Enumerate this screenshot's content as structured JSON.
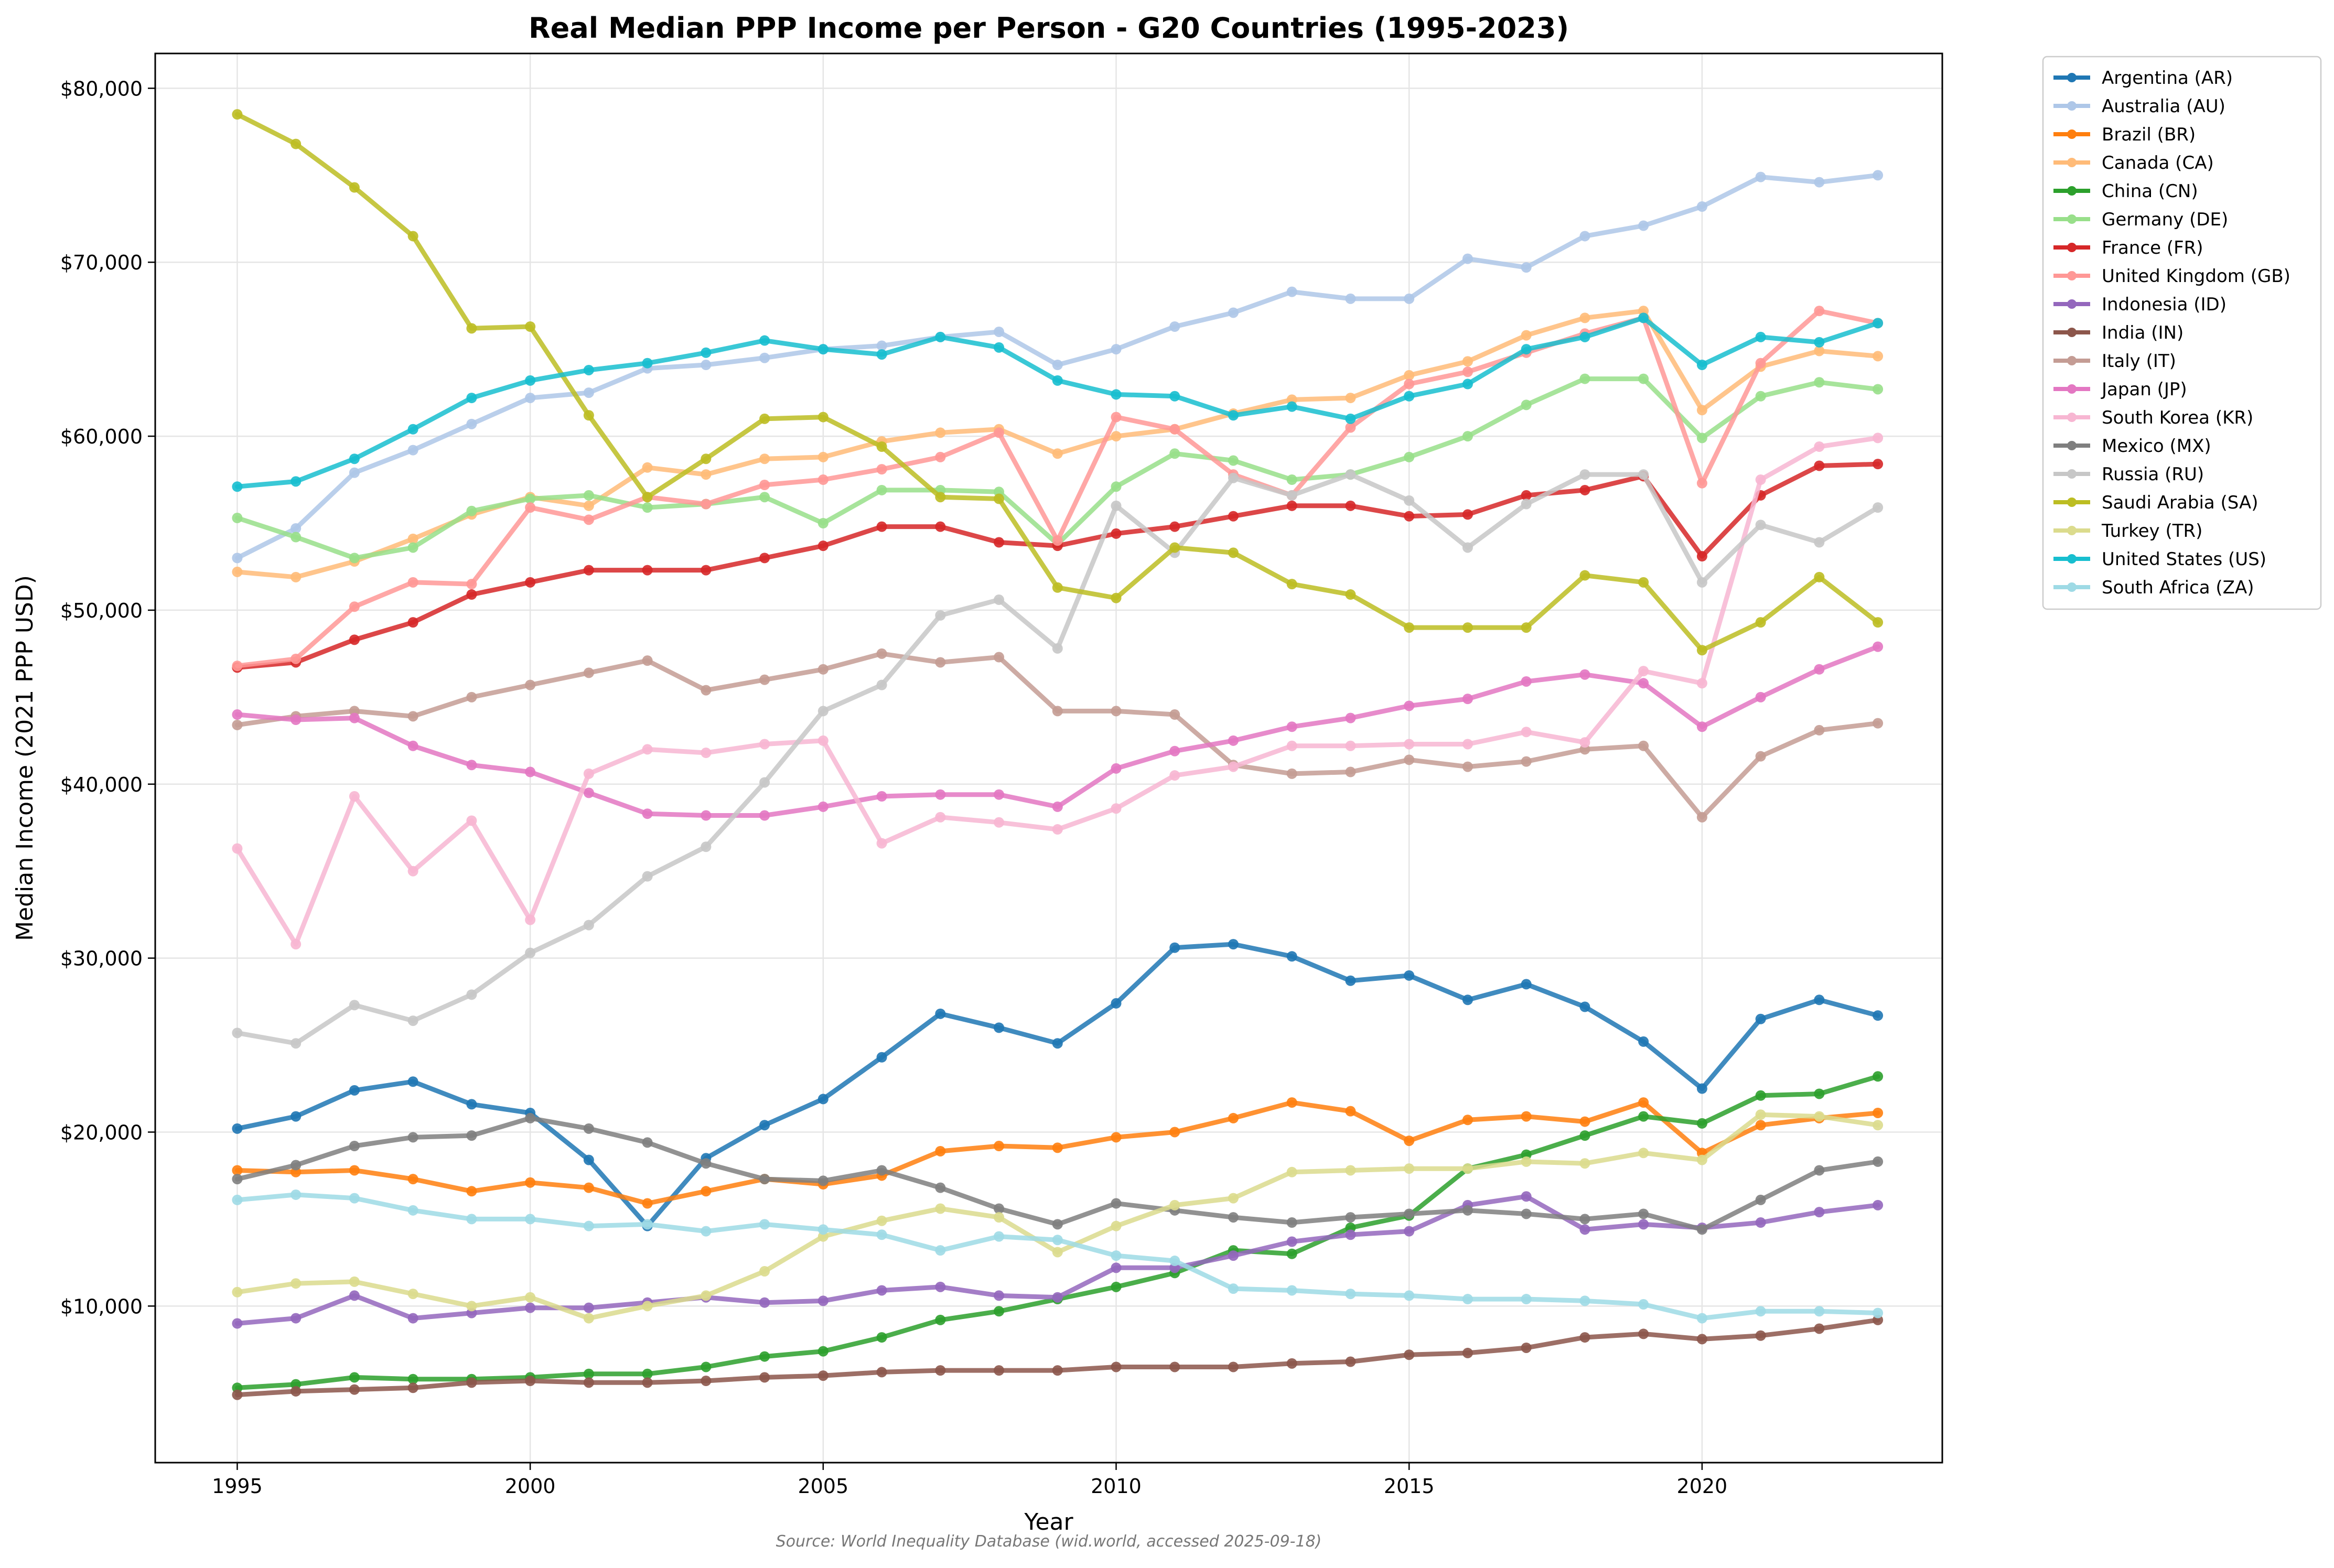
{
  "chart_data": {
    "type": "line",
    "title": "Real Median PPP Income per Person - G20 Countries (1995-2023)",
    "xlabel": "Year",
    "ylabel": "Median Income (2021 PPP USD)",
    "source_note": "Source: World Inequality Database (wid.world, accessed 2025-09-18)",
    "xlim": [
      1993.6,
      2024.1
    ],
    "ylim": [
      1000,
      82000
    ],
    "x_ticks": [
      1995,
      2000,
      2005,
      2010,
      2015,
      2020
    ],
    "x_tick_labels": [
      "1995",
      "2000",
      "2005",
      "2010",
      "2015",
      "2020"
    ],
    "y_ticks": [
      10000,
      20000,
      30000,
      40000,
      50000,
      60000,
      70000,
      80000
    ],
    "y_tick_labels": [
      "$10,000",
      "$20,000",
      "$30,000",
      "$40,000",
      "$50,000",
      "$60,000",
      "$70,000",
      "$80,000"
    ],
    "grid": true,
    "legend_position": "outside-right-top",
    "x": [
      1995,
      1996,
      1997,
      1998,
      1999,
      2000,
      2001,
      2002,
      2003,
      2004,
      2005,
      2006,
      2007,
      2008,
      2009,
      2010,
      2011,
      2012,
      2013,
      2014,
      2015,
      2016,
      2017,
      2018,
      2019,
      2020,
      2021,
      2022,
      2023
    ],
    "series": [
      {
        "name": "Argentina (AR)",
        "color": "#1f77b4",
        "values": [
          20200,
          20900,
          22400,
          22900,
          21600,
          21100,
          18400,
          14600,
          18500,
          20400,
          21900,
          24300,
          26800,
          26000,
          25100,
          27400,
          30600,
          30800,
          30100,
          28700,
          29000,
          27600,
          28500,
          27200,
          25200,
          22500,
          26500,
          27600,
          26700
        ]
      },
      {
        "name": "Australia (AU)",
        "color": "#aec7e8",
        "values": [
          53000,
          54700,
          57900,
          59200,
          60700,
          62200,
          62500,
          63900,
          64100,
          64500,
          65000,
          65200,
          65700,
          66000,
          64100,
          65000,
          66300,
          67100,
          68300,
          67900,
          67900,
          70200,
          69700,
          71500,
          72100,
          73200,
          74900,
          74600,
          75000
        ]
      },
      {
        "name": "Brazil (BR)",
        "color": "#ff7f0e",
        "values": [
          17800,
          17700,
          17800,
          17300,
          16600,
          17100,
          16800,
          15900,
          16600,
          17300,
          17000,
          17500,
          18900,
          19200,
          19100,
          19700,
          20000,
          20800,
          21700,
          21200,
          19500,
          20700,
          20900,
          20600,
          21700,
          18800,
          20400,
          20800,
          21100
        ]
      },
      {
        "name": "Canada (CA)",
        "color": "#ffbb78",
        "values": [
          52200,
          51900,
          52800,
          54100,
          55500,
          56500,
          56000,
          58200,
          57800,
          58700,
          58800,
          59700,
          60200,
          60400,
          59000,
          60000,
          60400,
          61300,
          62100,
          62200,
          63500,
          64300,
          65800,
          66800,
          67200,
          61500,
          64000,
          64900,
          64600
        ]
      },
      {
        "name": "China (CN)",
        "color": "#2ca02c",
        "values": [
          5300,
          5500,
          5900,
          5800,
          5800,
          5900,
          6100,
          6100,
          6500,
          7100,
          7400,
          8200,
          9200,
          9700,
          10400,
          11100,
          11900,
          13200,
          13000,
          14500,
          15200,
          17900,
          18700,
          19800,
          20900,
          20500,
          22100,
          22200,
          23200
        ]
      },
      {
        "name": "Germany (DE)",
        "color": "#98df8a",
        "values": [
          55300,
          54200,
          53000,
          53600,
          55700,
          56400,
          56600,
          55900,
          56100,
          56500,
          55000,
          56900,
          56900,
          56800,
          53800,
          57100,
          59000,
          58600,
          57500,
          57800,
          58800,
          60000,
          61800,
          63300,
          63300,
          59900,
          62300,
          63100,
          62700
        ]
      },
      {
        "name": "France (FR)",
        "color": "#d62728",
        "values": [
          46700,
          47000,
          48300,
          49300,
          50900,
          51600,
          52300,
          52300,
          52300,
          53000,
          53700,
          54800,
          54800,
          53900,
          53700,
          54400,
          54800,
          55400,
          56000,
          56000,
          55400,
          55500,
          56600,
          56900,
          57700,
          53100,
          56600,
          58300,
          58400
        ]
      },
      {
        "name": "United Kingdom (GB)",
        "color": "#ff9896",
        "values": [
          46800,
          47200,
          50200,
          51600,
          51500,
          55900,
          55200,
          56500,
          56100,
          57200,
          57500,
          58100,
          58800,
          60200,
          54000,
          61100,
          60400,
          57800,
          56600,
          60500,
          63000,
          63700,
          64800,
          65900,
          66800,
          57300,
          64200,
          67200,
          66500
        ]
      },
      {
        "name": "Indonesia (ID)",
        "color": "#9467bd",
        "values": [
          9000,
          9300,
          10600,
          9300,
          9600,
          9900,
          9900,
          10200,
          10500,
          10200,
          10300,
          10900,
          11100,
          10600,
          10500,
          12200,
          12200,
          12900,
          13700,
          14100,
          14300,
          15800,
          16300,
          14400,
          14700,
          14500,
          14800,
          15400,
          15800
        ]
      },
      {
        "name": "India (IN)",
        "color": "#8c564b",
        "values": [
          4900,
          5100,
          5200,
          5300,
          5600,
          5700,
          5600,
          5600,
          5700,
          5900,
          6000,
          6200,
          6300,
          6300,
          6300,
          6500,
          6500,
          6500,
          6700,
          6800,
          7200,
          7300,
          7600,
          8200,
          8400,
          8100,
          8300,
          8700,
          9200
        ]
      },
      {
        "name": "Italy (IT)",
        "color": "#c49c94",
        "values": [
          43400,
          43900,
          44200,
          43900,
          45000,
          45700,
          46400,
          47100,
          45400,
          46000,
          46600,
          47500,
          47000,
          47300,
          44200,
          44200,
          44000,
          41100,
          40600,
          40700,
          41400,
          41000,
          41300,
          42000,
          42200,
          38100,
          41600,
          43100,
          43500
        ]
      },
      {
        "name": "Japan (JP)",
        "color": "#e377c2",
        "values": [
          44000,
          43700,
          43800,
          42200,
          41100,
          40700,
          39500,
          38300,
          38200,
          38200,
          38700,
          39300,
          39400,
          39400,
          38700,
          40900,
          41900,
          42500,
          43300,
          43800,
          44500,
          44900,
          45900,
          46300,
          45800,
          43300,
          45000,
          46600,
          47900
        ]
      },
      {
        "name": "South Korea (KR)",
        "color": "#f7b6d2",
        "values": [
          36300,
          30800,
          39300,
          35000,
          37900,
          32200,
          40600,
          42000,
          41800,
          42300,
          42500,
          36600,
          38100,
          37800,
          37400,
          38600,
          40500,
          41000,
          42200,
          42200,
          42300,
          42300,
          43000,
          42400,
          46500,
          45800,
          57500,
          59400,
          59900
        ]
      },
      {
        "name": "Mexico (MX)",
        "color": "#7f7f7f",
        "values": [
          17300,
          18100,
          19200,
          19700,
          19800,
          20800,
          20200,
          19400,
          18200,
          17300,
          17200,
          17800,
          16800,
          15600,
          14700,
          15900,
          15500,
          15100,
          14800,
          15100,
          15300,
          15500,
          15300,
          15000,
          15300,
          14400,
          16100,
          17800,
          18300
        ]
      },
      {
        "name": "Russia (RU)",
        "color": "#c7c7c7",
        "values": [
          25700,
          25100,
          27300,
          26400,
          27900,
          30300,
          31900,
          34700,
          36400,
          40100,
          44200,
          45700,
          49700,
          50600,
          47800,
          56000,
          53300,
          57600,
          56600,
          57800,
          56300,
          53600,
          56100,
          57800,
          57800,
          51600,
          54900,
          53900,
          55900
        ]
      },
      {
        "name": "Saudi Arabia (SA)",
        "color": "#bcbd22",
        "values": [
          78500,
          76800,
          74300,
          71500,
          66200,
          66300,
          61200,
          56500,
          58700,
          61000,
          61100,
          59400,
          56500,
          56400,
          51300,
          50700,
          53600,
          53300,
          51500,
          50900,
          49000,
          49000,
          49000,
          52000,
          51600,
          47700,
          49300,
          51900,
          49300
        ]
      },
      {
        "name": "Turkey (TR)",
        "color": "#dbdb8d",
        "values": [
          10800,
          11300,
          11400,
          10700,
          10000,
          10500,
          9300,
          10000,
          10600,
          12000,
          14000,
          14900,
          15600,
          15100,
          13100,
          14600,
          15800,
          16200,
          17700,
          17800,
          17900,
          17900,
          18300,
          18200,
          18800,
          18400,
          21000,
          20900,
          20400
        ]
      },
      {
        "name": "United States (US)",
        "color": "#17becf",
        "values": [
          57100,
          57400,
          58700,
          60400,
          62200,
          63200,
          63800,
          64200,
          64800,
          65500,
          65000,
          64700,
          65700,
          65100,
          63200,
          62400,
          62300,
          61200,
          61700,
          61000,
          62300,
          63000,
          65000,
          65700,
          66800,
          64100,
          65700,
          65400,
          66500
        ]
      },
      {
        "name": "South Africa (ZA)",
        "color": "#9edae5",
        "values": [
          16100,
          16400,
          16200,
          15500,
          15000,
          15000,
          14600,
          14700,
          14300,
          14700,
          14400,
          14100,
          13200,
          14000,
          13800,
          12900,
          12600,
          11000,
          10900,
          10700,
          10600,
          10400,
          10400,
          10300,
          10100,
          9300,
          9700,
          9700,
          9600
        ]
      }
    ]
  }
}
